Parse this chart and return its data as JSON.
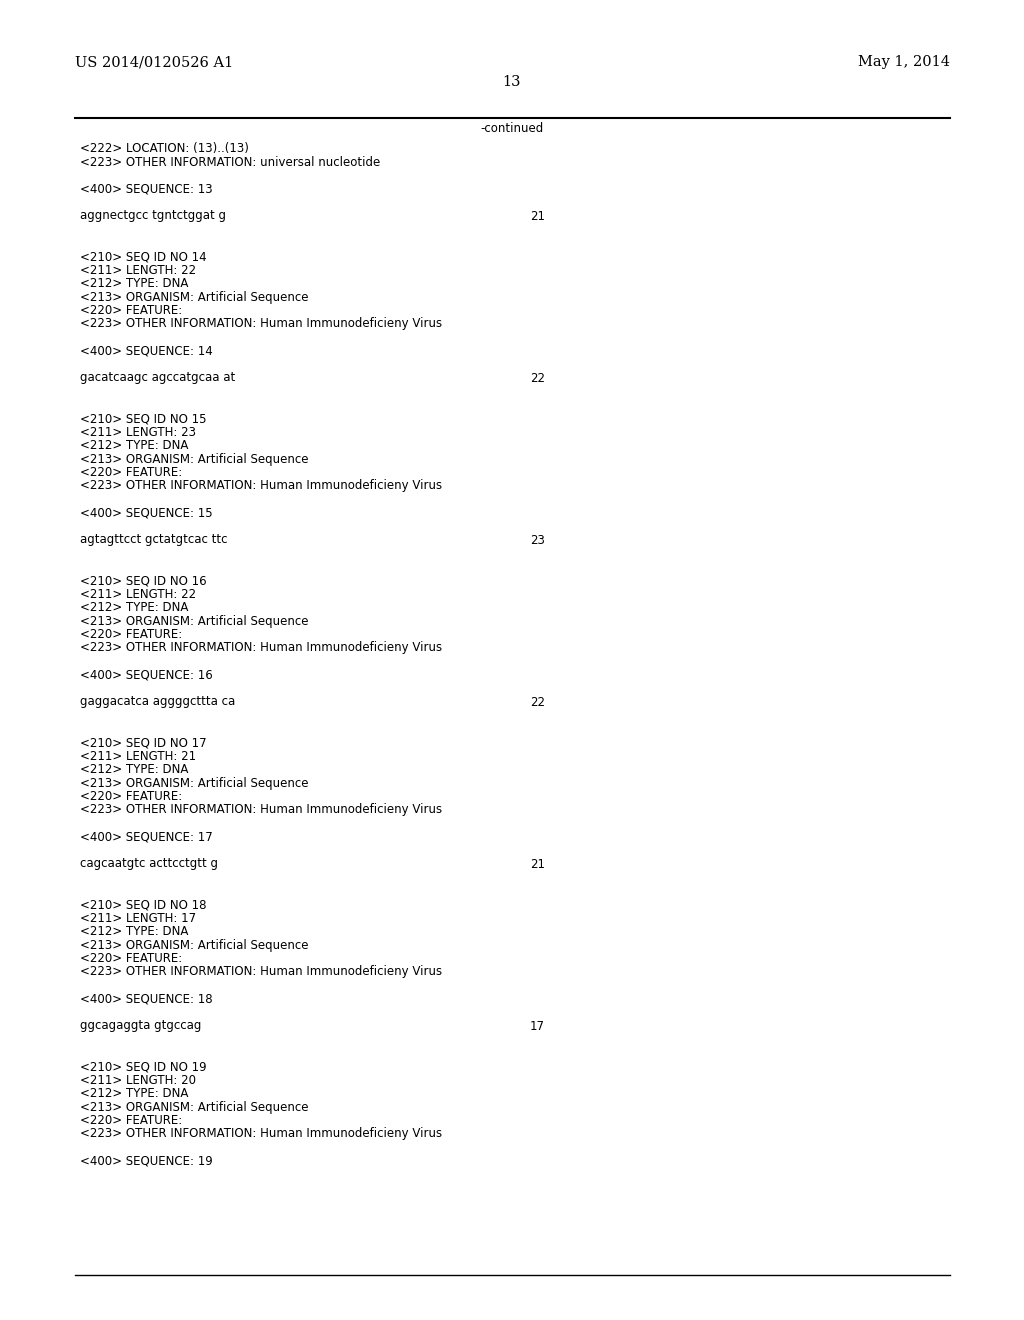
{
  "background_color": "#ffffff",
  "header_left": "US 2014/0120526 A1",
  "header_right": "May 1, 2014",
  "page_number": "13",
  "continued_label": "-continued",
  "font_size_header": 10.5,
  "font_size_body": 8.5,
  "font_size_page_num": 10.5,
  "monospace_font": "Courier New",
  "serif_font": "DejaVu Serif",
  "content_blocks": [
    {
      "type": "meta",
      "text": "<222> LOCATION: (13)..(13)"
    },
    {
      "type": "meta",
      "text": "<223> OTHER INFORMATION: universal nucleotide"
    },
    {
      "type": "blank"
    },
    {
      "type": "meta",
      "text": "<400> SEQUENCE: 13"
    },
    {
      "type": "blank"
    },
    {
      "type": "seq",
      "text": "aggnectgcc tgntctggat g",
      "num": "21"
    },
    {
      "type": "blank"
    },
    {
      "type": "blank"
    },
    {
      "type": "meta",
      "text": "<210> SEQ ID NO 14"
    },
    {
      "type": "meta",
      "text": "<211> LENGTH: 22"
    },
    {
      "type": "meta",
      "text": "<212> TYPE: DNA"
    },
    {
      "type": "meta",
      "text": "<213> ORGANISM: Artificial Sequence"
    },
    {
      "type": "meta",
      "text": "<220> FEATURE:"
    },
    {
      "type": "meta",
      "text": "<223> OTHER INFORMATION: Human Immunodeficieny Virus"
    },
    {
      "type": "blank"
    },
    {
      "type": "meta",
      "text": "<400> SEQUENCE: 14"
    },
    {
      "type": "blank"
    },
    {
      "type": "seq",
      "text": "gacatcaagc agccatgcaa at",
      "num": "22"
    },
    {
      "type": "blank"
    },
    {
      "type": "blank"
    },
    {
      "type": "meta",
      "text": "<210> SEQ ID NO 15"
    },
    {
      "type": "meta",
      "text": "<211> LENGTH: 23"
    },
    {
      "type": "meta",
      "text": "<212> TYPE: DNA"
    },
    {
      "type": "meta",
      "text": "<213> ORGANISM: Artificial Sequence"
    },
    {
      "type": "meta",
      "text": "<220> FEATURE:"
    },
    {
      "type": "meta",
      "text": "<223> OTHER INFORMATION: Human Immunodeficieny Virus"
    },
    {
      "type": "blank"
    },
    {
      "type": "meta",
      "text": "<400> SEQUENCE: 15"
    },
    {
      "type": "blank"
    },
    {
      "type": "seq",
      "text": "agtagttcct gctatgtcac ttc",
      "num": "23"
    },
    {
      "type": "blank"
    },
    {
      "type": "blank"
    },
    {
      "type": "meta",
      "text": "<210> SEQ ID NO 16"
    },
    {
      "type": "meta",
      "text": "<211> LENGTH: 22"
    },
    {
      "type": "meta",
      "text": "<212> TYPE: DNA"
    },
    {
      "type": "meta",
      "text": "<213> ORGANISM: Artificial Sequence"
    },
    {
      "type": "meta",
      "text": "<220> FEATURE:"
    },
    {
      "type": "meta",
      "text": "<223> OTHER INFORMATION: Human Immunodeficieny Virus"
    },
    {
      "type": "blank"
    },
    {
      "type": "meta",
      "text": "<400> SEQUENCE: 16"
    },
    {
      "type": "blank"
    },
    {
      "type": "seq",
      "text": "gaggacatca aggggcttta ca",
      "num": "22"
    },
    {
      "type": "blank"
    },
    {
      "type": "blank"
    },
    {
      "type": "meta",
      "text": "<210> SEQ ID NO 17"
    },
    {
      "type": "meta",
      "text": "<211> LENGTH: 21"
    },
    {
      "type": "meta",
      "text": "<212> TYPE: DNA"
    },
    {
      "type": "meta",
      "text": "<213> ORGANISM: Artificial Sequence"
    },
    {
      "type": "meta",
      "text": "<220> FEATURE:"
    },
    {
      "type": "meta",
      "text": "<223> OTHER INFORMATION: Human Immunodeficieny Virus"
    },
    {
      "type": "blank"
    },
    {
      "type": "meta",
      "text": "<400> SEQUENCE: 17"
    },
    {
      "type": "blank"
    },
    {
      "type": "seq",
      "text": "cagcaatgtc acttcctgtt g",
      "num": "21"
    },
    {
      "type": "blank"
    },
    {
      "type": "blank"
    },
    {
      "type": "meta",
      "text": "<210> SEQ ID NO 18"
    },
    {
      "type": "meta",
      "text": "<211> LENGTH: 17"
    },
    {
      "type": "meta",
      "text": "<212> TYPE: DNA"
    },
    {
      "type": "meta",
      "text": "<213> ORGANISM: Artificial Sequence"
    },
    {
      "type": "meta",
      "text": "<220> FEATURE:"
    },
    {
      "type": "meta",
      "text": "<223> OTHER INFORMATION: Human Immunodeficieny Virus"
    },
    {
      "type": "blank"
    },
    {
      "type": "meta",
      "text": "<400> SEQUENCE: 18"
    },
    {
      "type": "blank"
    },
    {
      "type": "seq",
      "text": "ggcagaggta gtgccag",
      "num": "17"
    },
    {
      "type": "blank"
    },
    {
      "type": "blank"
    },
    {
      "type": "meta",
      "text": "<210> SEQ ID NO 19"
    },
    {
      "type": "meta",
      "text": "<211> LENGTH: 20"
    },
    {
      "type": "meta",
      "text": "<212> TYPE: DNA"
    },
    {
      "type": "meta",
      "text": "<213> ORGANISM: Artificial Sequence"
    },
    {
      "type": "meta",
      "text": "<220> FEATURE:"
    },
    {
      "type": "meta",
      "text": "<223> OTHER INFORMATION: Human Immunodeficieny Virus"
    },
    {
      "type": "blank"
    },
    {
      "type": "meta",
      "text": "<400> SEQUENCE: 19"
    }
  ]
}
